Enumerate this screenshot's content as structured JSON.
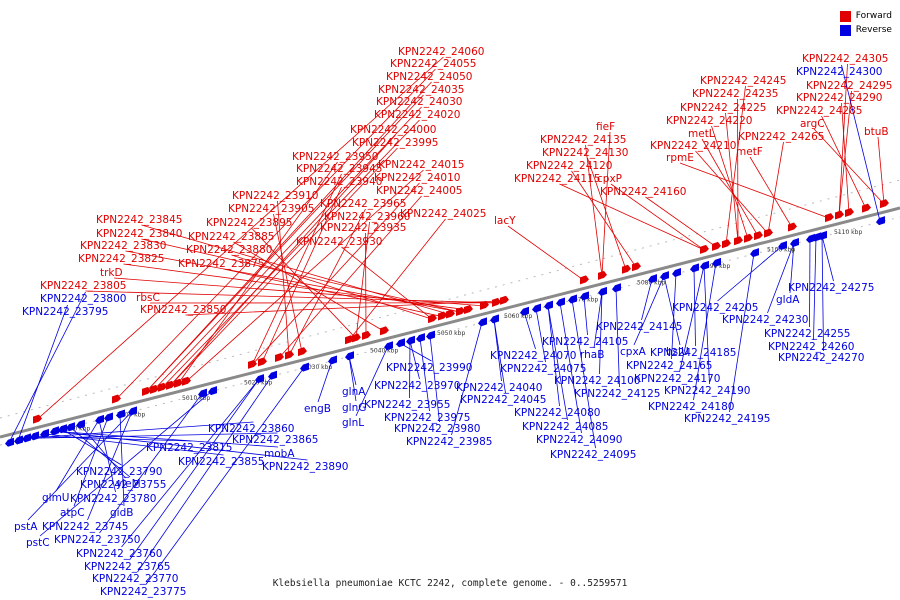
{
  "caption": "Klebsiella pneumoniae KCTC 2242, complete genome. - 0..5259571",
  "legend": {
    "forward": "Forward",
    "reverse": "Reverse"
  },
  "colors": {
    "forward": "#e00000",
    "reverse": "#0000e0",
    "axis": "#888888"
  },
  "ticks": [
    "4990 kbp",
    "5000 kbp",
    "5010 kbp",
    "5020 kbp",
    "5030 kbp",
    "5040 kbp",
    "5050 kbp",
    "5060 kbp",
    "5070 kbp",
    "5080 kbp",
    "5090 kbp",
    "5100 kbp",
    "5110 kbp"
  ],
  "forward_labels": [
    "KPN2242_24060",
    "KPN2242_24055",
    "KPN2242_24050",
    "KPN2242_24035",
    "KPN2242_24030",
    "KPN2242_24020",
    "KPN2242_24000",
    "KPN2242_23995",
    "KPN2242_23950",
    "KPN2242_24015",
    "KPN2242_23945",
    "KPN2242_24010",
    "KPN2242_23940",
    "KPN2242_24005",
    "KPN2242_23910",
    "KPN2242_23965",
    "KPN2242_23905",
    "KPN2242_24025",
    "KPN2242_23960",
    "KPN2242_23895",
    "KPN2242_23935",
    "KPN2242_23885",
    "KPN2242_23930",
    "KPN2242_23880",
    "KPN2242_23875",
    "KPN2242_23845",
    "KPN2242_23840",
    "KPN2242_23830",
    "KPN2242_23825",
    "trkD",
    "KPN2242_23805",
    "rbsC",
    "KPN2242_23850",
    "lacY",
    "fieF",
    "KPN2242_24135",
    "KPN2242_24130",
    "KPN2242_24120",
    "KPN2242_24115",
    "cpxP",
    "KPN2242_24160",
    "KPN2242_24245",
    "KPN2242_24235",
    "KPN2242_24225",
    "KPN2242_24220",
    "metL",
    "KPN2242_24265",
    "KPN2242_24210",
    "metF",
    "rpmE",
    "KPN2242_24305",
    "KPN2242_24295",
    "KPN2242_24290",
    "KPN2242_24285",
    "argC",
    "btuB"
  ],
  "reverse_labels": [
    "KPN2242_23800",
    "KPN2242_23795",
    "KPN2242_23860",
    "KPN2242_23865",
    "KPN2242_23815",
    "KPN2242_23855",
    "mobA",
    "KPN2242_23890",
    "KPN2242_23790",
    "yieM",
    "KPN2242_23755",
    "glmU",
    "KPN2242_23780",
    "atpC",
    "gidB",
    "KPN2242_23745",
    "pstA",
    "KPN2242_23750",
    "pstC",
    "KPN2242_23760",
    "KPN2242_23765",
    "KPN2242_23770",
    "KPN2242_23775",
    "engB",
    "glnA",
    "glnG",
    "glnL",
    "KPN2242_23990",
    "KPN2242_23970",
    "KPN2242_23955",
    "KPN2242_23975",
    "KPN2242_23980",
    "KPN2242_23985",
    "KPN2242_24040",
    "KPN2242_24045",
    "KPN2242_24070",
    "KPN2242_24075",
    "KPN2242_24080",
    "KPN2242_24085",
    "KPN2242_24090",
    "KPN2242_24095",
    "KPN2242_24105",
    "rhaB",
    "KPN2242_24100",
    "KPN2242_24125",
    "KPN2242_24145",
    "cpxA",
    "hslU",
    "KPN2242_24165",
    "KPN2242_24185",
    "KPN2242_24170",
    "KPN2242_24190",
    "KPN2242_24180",
    "KPN2242_24195",
    "KPN2242_24205",
    "KPN2242_24230",
    "gldA",
    "KPN2242_24255",
    "KPN2242_24260",
    "KPN2242_24270",
    "KPN2242_24275",
    "KPN2242_24300"
  ]
}
